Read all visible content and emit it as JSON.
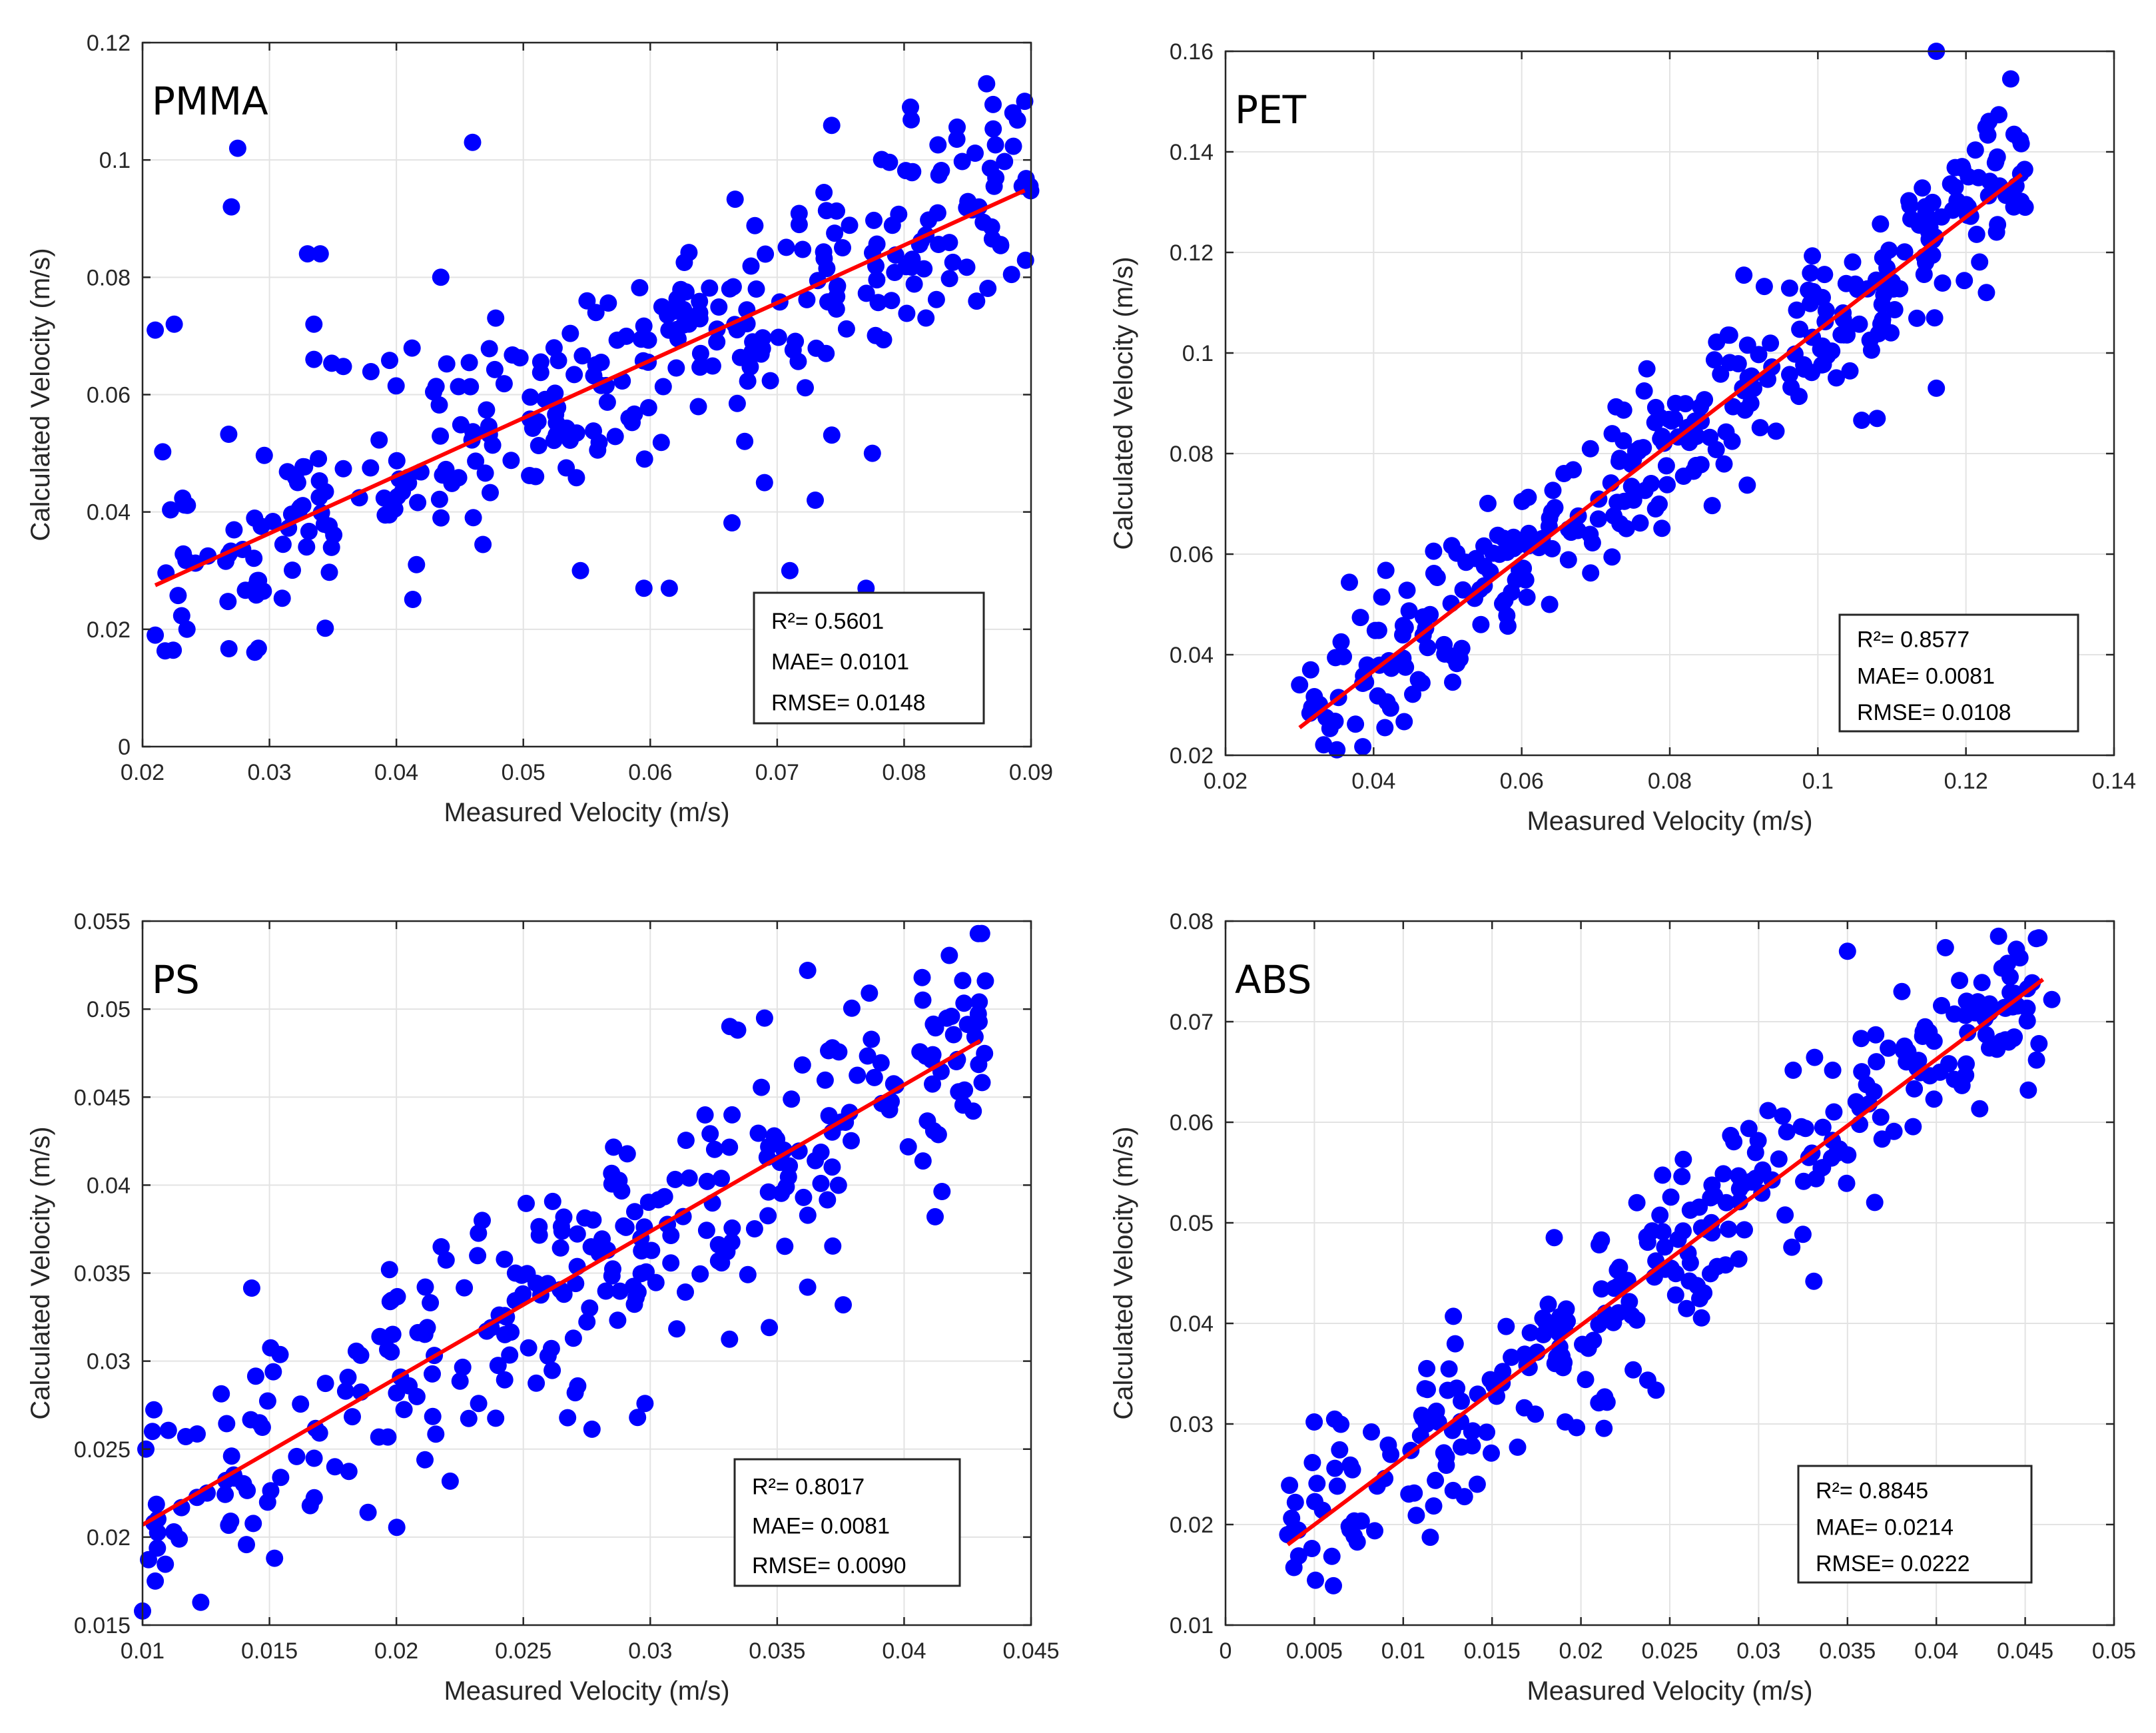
{
  "figure": {
    "colors": {
      "points": "#0000ff",
      "fit": "#ff0000",
      "grid": "#e3e3e3",
      "axis": "#262626"
    }
  },
  "chart_data": [
    {
      "type": "scatter",
      "title": "PMMA",
      "xlabel": "Measured Velocity (m/s)",
      "ylabel": "Calculated Velocity (m/s)",
      "xlim": [
        0.02,
        0.09
      ],
      "ylim": [
        0,
        0.12
      ],
      "xticks": [
        0.02,
        0.03,
        0.04,
        0.05,
        0.06,
        0.07,
        0.08,
        0.09
      ],
      "yticks": [
        0,
        0.02,
        0.04,
        0.06,
        0.08,
        0.1,
        0.12
      ],
      "xtick_labels": [
        "0.02",
        "0.03",
        "0.04",
        "0.05",
        "0.06",
        "0.07",
        "0.08",
        "0.09"
      ],
      "ytick_labels": [
        "0",
        "0.02",
        "0.04",
        "0.06",
        "0.08",
        "0.1",
        "0.12"
      ],
      "grid": true,
      "fit_line": {
        "x": [
          0.021,
          0.0895
        ],
        "y": [
          0.0275,
          0.0948
        ]
      },
      "stats": [
        "R²= 0.5601",
        "MAE= 0.0101",
        "RMSE= 0.0148"
      ],
      "stats_position": "bottom-right",
      "points": {
        "n": 330,
        "seed": 11,
        "x_range": [
          0.021,
          0.09
        ],
        "slope": 0.98,
        "intercept": 0.007,
        "noise": 0.009
      },
      "outliers": [
        [
          0.021,
          0.071
        ],
        [
          0.0225,
          0.072
        ],
        [
          0.0275,
          0.102
        ],
        [
          0.027,
          0.092
        ],
        [
          0.033,
          0.084
        ],
        [
          0.034,
          0.084
        ],
        [
          0.0335,
          0.072
        ],
        [
          0.0335,
          0.066
        ],
        [
          0.046,
          0.103
        ],
        [
          0.0435,
          0.08
        ],
        [
          0.071,
          0.03
        ],
        [
          0.0775,
          0.05
        ],
        [
          0.077,
          0.027
        ],
        [
          0.0595,
          0.027
        ],
        [
          0.0615,
          0.027
        ],
        [
          0.069,
          0.045
        ],
        [
          0.073,
          0.042
        ],
        [
          0.0545,
          0.03
        ],
        [
          0.021,
          0.019
        ],
        [
          0.0235,
          0.02
        ],
        [
          0.0865,
          0.113
        ],
        [
          0.0895,
          0.11
        ],
        [
          0.0805,
          0.109
        ]
      ]
    },
    {
      "type": "scatter",
      "title": "PET",
      "xlabel": "Measured Velocity (m/s)",
      "ylabel": "Calculated Velocity (m/s)",
      "xlim": [
        0.02,
        0.14
      ],
      "ylim": [
        0.02,
        0.16
      ],
      "xticks": [
        0.02,
        0.04,
        0.06,
        0.08,
        0.1,
        0.12,
        0.14
      ],
      "yticks": [
        0.02,
        0.04,
        0.06,
        0.08,
        0.1,
        0.12,
        0.14,
        0.16
      ],
      "xtick_labels": [
        "0.02",
        "0.04",
        "0.06",
        "0.08",
        "0.1",
        "0.12",
        "0.14"
      ],
      "ytick_labels": [
        "0.02",
        "0.04",
        "0.06",
        "0.08",
        "0.1",
        "0.12",
        "0.14",
        "0.16"
      ],
      "grid": true,
      "fit_line": {
        "x": [
          0.03,
          0.1275
        ],
        "y": [
          0.0255,
          0.1355
        ]
      },
      "stats": [
        "R²= 0.8577",
        "MAE= 0.0081",
        "RMSE= 0.0108"
      ],
      "stats_position": "bottom-right",
      "points": {
        "n": 340,
        "seed": 23,
        "x_range": [
          0.03,
          0.128
        ],
        "slope": 1.12,
        "intercept": -0.0085,
        "noise": 0.008
      },
      "outliers": [
        [
          0.116,
          0.16
        ],
        [
          0.116,
          0.093
        ],
        [
          0.108,
          0.087
        ],
        [
          0.03,
          0.034
        ],
        [
          0.0315,
          0.037
        ],
        [
          0.128,
          0.129
        ]
      ]
    },
    {
      "type": "scatter",
      "title": "PS",
      "xlabel": "Measured Velocity (m/s)",
      "ylabel": "Calculated Velocity (m/s)",
      "xlim": [
        0.01,
        0.045
      ],
      "ylim": [
        0.015,
        0.055
      ],
      "xticks": [
        0.01,
        0.015,
        0.02,
        0.025,
        0.03,
        0.035,
        0.04,
        0.045
      ],
      "yticks": [
        0.015,
        0.02,
        0.025,
        0.03,
        0.035,
        0.04,
        0.045,
        0.05,
        0.055
      ],
      "xtick_labels": [
        "0.01",
        "0.015",
        "0.02",
        "0.025",
        "0.03",
        "0.035",
        "0.04",
        "0.045"
      ],
      "ytick_labels": [
        "0.015",
        "0.02",
        "0.025",
        "0.03",
        "0.035",
        "0.04",
        "0.045",
        "0.05",
        "0.055"
      ],
      "grid": true,
      "fit_line": {
        "x": [
          0.01,
          0.043
        ],
        "y": [
          0.0207,
          0.0482
        ]
      },
      "stats": [
        "R²= 0.8017",
        "MAE= 0.0081",
        "RMSE= 0.0090"
      ],
      "stats_position": "bottom-right",
      "points": {
        "n": 300,
        "seed": 37,
        "x_range": [
          0.01,
          0.0432
        ],
        "slope": 0.835,
        "intercept": 0.0124,
        "noise": 0.0035
      },
      "outliers": [
        [
          0.01,
          0.0158
        ],
        [
          0.0105,
          0.0175
        ],
        [
          0.0362,
          0.0522
        ],
        [
          0.0362,
          0.0342
        ],
        [
          0.0376,
          0.0332
        ],
        [
          0.0295,
          0.0268
        ],
        [
          0.0152,
          0.0188
        ],
        [
          0.0432,
          0.0516
        ]
      ]
    },
    {
      "type": "scatter",
      "title": "ABS",
      "xlabel": "Measured Velocity (m/s)",
      "ylabel": "Calculated Velocity (m/s)",
      "xlim": [
        0,
        0.05
      ],
      "ylim": [
        0.01,
        0.08
      ],
      "xticks": [
        0,
        0.005,
        0.01,
        0.015,
        0.02,
        0.025,
        0.03,
        0.035,
        0.04,
        0.045,
        0.05
      ],
      "yticks": [
        0.01,
        0.02,
        0.03,
        0.04,
        0.05,
        0.06,
        0.07,
        0.08
      ],
      "xtick_labels": [
        "0",
        "0.005",
        "0.01",
        "0.015",
        "0.02",
        "0.025",
        "0.03",
        "0.035",
        "0.04",
        "0.045",
        "0.05"
      ],
      "ytick_labels": [
        "0.01",
        "0.02",
        "0.03",
        "0.04",
        "0.05",
        "0.06",
        "0.07",
        "0.08"
      ],
      "grid": true,
      "fit_line": {
        "x": [
          0.0035,
          0.046
        ],
        "y": [
          0.018,
          0.0742
        ]
      },
      "stats": [
        "R²= 0.8845",
        "MAE= 0.0214",
        "RMSE= 0.0222"
      ],
      "stats_position": "bottom-right",
      "points": {
        "n": 300,
        "seed": 53,
        "x_range": [
          0.0035,
          0.0465
        ],
        "slope": 1.32,
        "intercept": 0.0134,
        "noise": 0.0045
      },
      "outliers": [
        [
          0.0035,
          0.019
        ],
        [
          0.007,
          0.0195
        ],
        [
          0.0435,
          0.0785
        ],
        [
          0.035,
          0.077
        ],
        [
          0.0465,
          0.0722
        ],
        [
          0.0445,
          0.0772
        ]
      ]
    }
  ]
}
